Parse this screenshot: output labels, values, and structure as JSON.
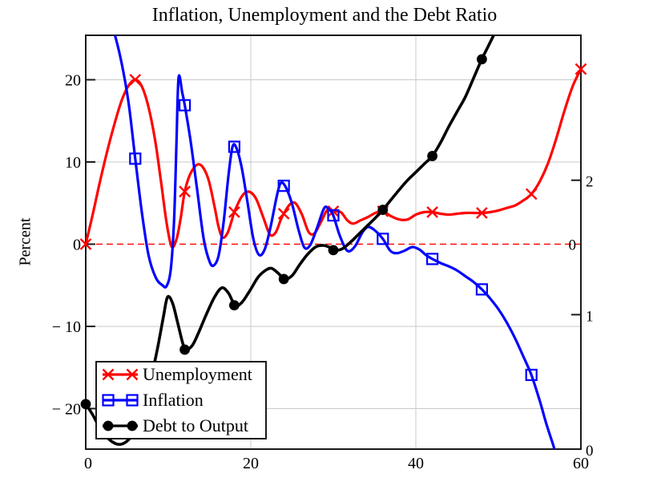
{
  "title": "Inflation, Unemployment and the Debt Ratio",
  "chart_data": {
    "type": "line",
    "title": "Inflation, Unemployment and the Debt Ratio",
    "x": {
      "min": 0,
      "max": 60,
      "ticks": [
        {
          "value": 0,
          "label": "0"
        },
        {
          "value": 20,
          "label": "20"
        },
        {
          "value": 40,
          "label": "40"
        },
        {
          "value": 60,
          "label": "60"
        }
      ]
    },
    "y_left": {
      "label": "Percent",
      "min": -24.93,
      "max": 25.41,
      "ticks": [
        {
          "value": 20,
          "label": "20"
        },
        {
          "value": 10,
          "label": "10"
        },
        {
          "value": 0,
          "label": "0"
        },
        {
          "value": -10,
          "label": "− 10"
        },
        {
          "value": -20,
          "label": "− 20"
        }
      ]
    },
    "y_right": {
      "min": 0,
      "max": 3.078,
      "ticks": [
        {
          "value": 2,
          "label": "2"
        },
        {
          "value": 1,
          "label": "1"
        },
        {
          "value": 0,
          "label": "0"
        }
      ]
    },
    "zero_marker": {
      "value": 0,
      "label": "0",
      "line_color": "#ff0000",
      "label_color": "#000000"
    },
    "grid_color": "#c9c9c9",
    "frame_color": "#1a1a1a",
    "legend": {
      "position": "bottom-left"
    },
    "series": [
      {
        "name": "Unemployment",
        "color": "#ff0000",
        "axis": "left",
        "marker": "x",
        "points": [
          [
            0,
            0
          ],
          [
            0.8,
            3.4
          ],
          [
            1.7,
            7.5
          ],
          [
            2.6,
            11.3
          ],
          [
            3.5,
            14.7
          ],
          [
            4.4,
            17.6
          ],
          [
            5.2,
            19.3
          ],
          [
            6,
            20.0
          ],
          [
            6.8,
            19.2
          ],
          [
            7.6,
            16.7
          ],
          [
            8.4,
            12.7
          ],
          [
            9.1,
            7.8
          ],
          [
            9.8,
            2.6
          ],
          [
            10.4,
            -0.3
          ],
          [
            11,
            0.6
          ],
          [
            11.5,
            3.1
          ],
          [
            12,
            6.4
          ],
          [
            12.8,
            8.8
          ],
          [
            13.8,
            9.7
          ],
          [
            14.8,
            8.1
          ],
          [
            15.6,
            4.6
          ],
          [
            16.1,
            2.1
          ],
          [
            16.6,
            0.8
          ],
          [
            17.2,
            1.4
          ],
          [
            17.7,
            2.9
          ],
          [
            18,
            3.9
          ],
          [
            18.9,
            5.8
          ],
          [
            19.7,
            6.4
          ],
          [
            20.6,
            5.6
          ],
          [
            21.5,
            3.3
          ],
          [
            22.3,
            1.2
          ],
          [
            23,
            1.4
          ],
          [
            23.6,
            2.9
          ],
          [
            24,
            3.7
          ],
          [
            24.7,
            4.8
          ],
          [
            25.4,
            5.0
          ],
          [
            26.2,
            3.6
          ],
          [
            27,
            1.5
          ],
          [
            27.7,
            1.3
          ],
          [
            28.5,
            2.7
          ],
          [
            29.3,
            4.2
          ],
          [
            30,
            4.0
          ],
          [
            30.9,
            3.9
          ],
          [
            31.7,
            2.9
          ],
          [
            32.4,
            2.5
          ],
          [
            33.3,
            2.9
          ],
          [
            34.2,
            3.3
          ],
          [
            35.1,
            3.8
          ],
          [
            36,
            4.0
          ],
          [
            37,
            3.4
          ],
          [
            38,
            3.0
          ],
          [
            39,
            3.0
          ],
          [
            40,
            3.6
          ],
          [
            41,
            3.9
          ],
          [
            42,
            3.9
          ],
          [
            43,
            3.7
          ],
          [
            44,
            3.6
          ],
          [
            45,
            3.7
          ],
          [
            46,
            3.8
          ],
          [
            47,
            3.8
          ],
          [
            48,
            3.8
          ],
          [
            49,
            3.9
          ],
          [
            50,
            4.1
          ],
          [
            51,
            4.4
          ],
          [
            52,
            4.7
          ],
          [
            53,
            5.3
          ],
          [
            54,
            6.1
          ],
          [
            55,
            7.6
          ],
          [
            56,
            9.8
          ],
          [
            57,
            12.8
          ],
          [
            58,
            16.2
          ],
          [
            59,
            19.2
          ],
          [
            60,
            21.3
          ]
        ],
        "markers": [
          [
            0,
            0
          ],
          [
            6,
            20.0
          ],
          [
            12,
            6.4
          ],
          [
            18,
            3.9
          ],
          [
            24,
            3.7
          ],
          [
            30,
            4.0
          ],
          [
            36,
            4.0
          ],
          [
            42,
            3.9
          ],
          [
            48,
            3.8
          ],
          [
            54,
            6.1
          ],
          [
            60,
            21.3
          ]
        ]
      },
      {
        "name": "Inflation",
        "color": "#0000ff",
        "axis": "left",
        "marker": "square",
        "points": [
          [
            3.55,
            25.4
          ],
          [
            4.1,
            23.2
          ],
          [
            4.7,
            20.2
          ],
          [
            5.3,
            16.4
          ],
          [
            6,
            10.4
          ],
          [
            6.8,
            3.9
          ],
          [
            7.6,
            -1.3
          ],
          [
            8.5,
            -4.1
          ],
          [
            9.3,
            -5.0
          ],
          [
            9.8,
            -5.1
          ],
          [
            10.3,
            -3.1
          ],
          [
            10.7,
            2.8
          ],
          [
            11,
            12.5
          ],
          [
            11.25,
            20.3
          ],
          [
            11.7,
            18.4
          ],
          [
            12,
            16.9
          ],
          [
            12.7,
            12.6
          ],
          [
            13.5,
            6.6
          ],
          [
            14.3,
            0.6
          ],
          [
            15,
            -2.1
          ],
          [
            15.5,
            -2.6
          ],
          [
            16.1,
            -1.4
          ],
          [
            16.7,
            2.6
          ],
          [
            17.3,
            8.4
          ],
          [
            17.8,
            11.9
          ],
          [
            18.3,
            11.6
          ],
          [
            18.9,
            9.3
          ],
          [
            19.6,
            5.1
          ],
          [
            20.3,
            0.7
          ],
          [
            21,
            -1.3
          ],
          [
            21.7,
            -0.6
          ],
          [
            22.4,
            2.1
          ],
          [
            23.1,
            5.6
          ],
          [
            23.6,
            7.4
          ],
          [
            24.2,
            7.0
          ],
          [
            25,
            4.9
          ],
          [
            25.8,
            1.7
          ],
          [
            26.5,
            -0.4
          ],
          [
            27.2,
            -0.1
          ],
          [
            28,
            1.9
          ],
          [
            28.9,
            4.4
          ],
          [
            29.5,
            4.2
          ],
          [
            30,
            3.5
          ],
          [
            30.8,
            1.0
          ],
          [
            31.7,
            -0.8
          ],
          [
            32.6,
            -0.3
          ],
          [
            33.5,
            1.4
          ],
          [
            34.2,
            2.1
          ],
          [
            35,
            1.7
          ],
          [
            36,
            0.65
          ],
          [
            36.9,
            -0.8
          ],
          [
            37.7,
            -1.1
          ],
          [
            38.6,
            -0.8
          ],
          [
            39.6,
            -0.35
          ],
          [
            40.5,
            -0.7
          ],
          [
            41.2,
            -1.3
          ],
          [
            42,
            -1.8
          ],
          [
            43,
            -2.3
          ],
          [
            44,
            -2.7
          ],
          [
            45,
            -3.2
          ],
          [
            46,
            -3.9
          ],
          [
            47,
            -4.6
          ],
          [
            48,
            -5.5
          ],
          [
            49,
            -6.6
          ],
          [
            50,
            -7.9
          ],
          [
            51,
            -9.5
          ],
          [
            52,
            -11.4
          ],
          [
            53,
            -13.6
          ],
          [
            54,
            -15.9
          ],
          [
            55,
            -19.0
          ],
          [
            55.8,
            -21.8
          ],
          [
            56.6,
            -24.3
          ],
          [
            56.95,
            -25.5
          ]
        ],
        "markers": [
          [
            6,
            10.4
          ],
          [
            12,
            16.9
          ],
          [
            18,
            11.85
          ],
          [
            24,
            7.1
          ],
          [
            30,
            3.5
          ],
          [
            36,
            0.65
          ],
          [
            42,
            -1.8
          ],
          [
            48,
            -5.5
          ],
          [
            54,
            -15.9
          ]
        ]
      },
      {
        "name": "Debt to Output",
        "color": "#000000",
        "axis": "right",
        "marker": "circle",
        "points": [
          [
            0,
            0.335
          ],
          [
            0.8,
            0.26
          ],
          [
            1.6,
            0.17
          ],
          [
            2.4,
            0.1
          ],
          [
            3.2,
            0.055
          ],
          [
            4,
            0.035
          ],
          [
            4.8,
            0.05
          ],
          [
            5.6,
            0.1
          ],
          [
            6.4,
            0.19
          ],
          [
            7.2,
            0.35
          ],
          [
            8,
            0.55
          ],
          [
            8.7,
            0.75
          ],
          [
            9.4,
            0.98
          ],
          [
            9.9,
            1.13
          ],
          [
            10.5,
            1.09
          ],
          [
            11.1,
            0.95
          ],
          [
            11.7,
            0.8
          ],
          [
            12.1,
            0.74
          ],
          [
            12.9,
            0.77
          ],
          [
            13.7,
            0.87
          ],
          [
            14.6,
            1.0
          ],
          [
            15.6,
            1.13
          ],
          [
            16.5,
            1.2
          ],
          [
            17.3,
            1.16
          ],
          [
            18.1,
            1.07
          ],
          [
            18.9,
            1.09
          ],
          [
            19.9,
            1.18
          ],
          [
            20.9,
            1.28
          ],
          [
            21.8,
            1.33
          ],
          [
            22.5,
            1.345
          ],
          [
            23.3,
            1.31
          ],
          [
            24.1,
            1.265
          ],
          [
            25,
            1.29
          ],
          [
            25.9,
            1.37
          ],
          [
            26.9,
            1.45
          ],
          [
            27.9,
            1.505
          ],
          [
            28.8,
            1.515
          ],
          [
            29.6,
            1.5
          ],
          [
            30.2,
            1.48
          ],
          [
            31.1,
            1.49
          ],
          [
            32.1,
            1.54
          ],
          [
            33.1,
            1.6
          ],
          [
            34.1,
            1.66
          ],
          [
            35.1,
            1.72
          ],
          [
            36,
            1.78
          ],
          [
            37,
            1.855
          ],
          [
            38,
            1.93
          ],
          [
            39,
            2.0
          ],
          [
            40,
            2.06
          ],
          [
            41,
            2.12
          ],
          [
            42,
            2.18
          ],
          [
            43,
            2.28
          ],
          [
            44,
            2.4
          ],
          [
            45,
            2.51
          ],
          [
            46,
            2.62
          ],
          [
            47,
            2.76
          ],
          [
            48,
            2.9
          ],
          [
            48.8,
            3.0
          ],
          [
            49.6,
            3.1
          ]
        ],
        "markers": [
          [
            0,
            0.335
          ],
          [
            6,
            0.13
          ],
          [
            12,
            0.74
          ],
          [
            18,
            1.07
          ],
          [
            24,
            1.265
          ],
          [
            30,
            1.48
          ],
          [
            36,
            1.78
          ],
          [
            42,
            2.18
          ],
          [
            48,
            2.9
          ]
        ]
      }
    ]
  }
}
